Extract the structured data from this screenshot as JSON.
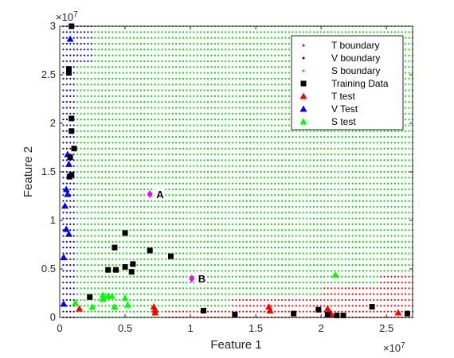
{
  "chart_data": {
    "type": "scatter",
    "xlabel": "Feature 1",
    "ylabel": "Feature 2",
    "x_exponent": "×10^7",
    "y_exponent": "×10^7",
    "x_exponent_base": "×10",
    "x_exponent_power": "7",
    "y_exponent_base": "×10",
    "y_exponent_power": "7",
    "xlim": [
      0,
      27000000
    ],
    "ylim": [
      0,
      30000000
    ],
    "x_ticks": [
      0,
      5000000,
      10000000,
      15000000,
      20000000,
      25000000
    ],
    "x_tick_labels": [
      "0",
      "0.5",
      "1",
      "1.5",
      "2",
      "2.5"
    ],
    "y_ticks": [
      0,
      5000000,
      10000000,
      15000000,
      20000000,
      25000000,
      30000000
    ],
    "y_tick_labels": [
      "0",
      "0.5",
      "1",
      "1.5",
      "2",
      "2.5",
      "3"
    ],
    "grid": false,
    "legend_position": "top-right",
    "colors": {
      "T": "#ff0000",
      "V": "#0000cc",
      "S": "#00dd00",
      "training": "#000000",
      "annotation": "#ff00ff"
    },
    "legend": [
      {
        "label": "T boundary",
        "marker": "dot",
        "color": "#ff0000"
      },
      {
        "label": "V boundary",
        "marker": "dot",
        "color": "#0000cc"
      },
      {
        "label": "S boundary",
        "marker": "dot",
        "color": "#00dd00"
      },
      {
        "label": "Training Data",
        "marker": "square",
        "color": "#000000"
      },
      {
        "label": "T test",
        "marker": "triangle",
        "color": "#ff0000"
      },
      {
        "label": "V Test",
        "marker": "triangle",
        "color": "#0000ff"
      },
      {
        "label": "S test",
        "marker": "triangle",
        "color": "#00ff00"
      }
    ],
    "boundary_grid": {
      "x_step": 270000,
      "y_step": 600000,
      "regions": [
        {
          "class": "V",
          "description": "x < 2700000 and y > 26000000",
          "x_max": 2700000,
          "y_min": 26000000
        },
        {
          "class": "V",
          "description": "x < 1350000",
          "x_max": 1350000
        },
        {
          "class": "T",
          "description": "x > 8000000 and y < 1000000",
          "x_min": 8000000,
          "y_max": 1000000
        },
        {
          "class": "T",
          "description": "x > 13000000 and y < 2000000",
          "x_min": 13000000,
          "y_max": 2000000
        },
        {
          "class": "T",
          "description": "x > 20000000 and y < 3100000",
          "x_min": 20000000,
          "y_max": 3100000
        },
        {
          "class": "T",
          "description": "x > 24500000 and y < 4300000",
          "x_min": 24500000,
          "y_max": 4300000
        },
        {
          "class": "S",
          "description": "elsewhere"
        }
      ]
    },
    "training_data": [
      [
        900000,
        30000000
      ],
      [
        700000,
        25600000
      ],
      [
        700000,
        25200000
      ],
      [
        900000,
        20500000
      ],
      [
        900000,
        19200000
      ],
      [
        1100000,
        17400000
      ],
      [
        800000,
        16500000
      ],
      [
        900000,
        14700000
      ],
      [
        750000,
        14500000
      ],
      [
        5000000,
        8700000
      ],
      [
        4200000,
        7200000
      ],
      [
        6900000,
        6900000
      ],
      [
        8500000,
        6300000
      ],
      [
        5600000,
        5500000
      ],
      [
        5000000,
        5200000
      ],
      [
        3700000,
        4900000
      ],
      [
        4300000,
        4900000
      ],
      [
        5500000,
        4700000
      ],
      [
        2300000,
        2100000
      ],
      [
        11000000,
        700000
      ],
      [
        13400000,
        300000
      ],
      [
        17900000,
        400000
      ],
      [
        19800000,
        800000
      ],
      [
        20500000,
        300000
      ],
      [
        21200000,
        200000
      ],
      [
        21700000,
        200000
      ],
      [
        23900000,
        1100000
      ],
      [
        26600000,
        400000
      ]
    ],
    "t_test": [
      [
        1500000,
        900000
      ],
      [
        7200000,
        1100000
      ],
      [
        7300000,
        800000
      ],
      [
        7300000,
        500000
      ],
      [
        16000000,
        1100000
      ],
      [
        16100000,
        700000
      ],
      [
        20500000,
        900000
      ],
      [
        20700000,
        500000
      ],
      [
        20800000,
        300000
      ],
      [
        25900000,
        500000
      ]
    ],
    "v_test": [
      [
        800000,
        28700000
      ],
      [
        600000,
        16800000
      ],
      [
        700000,
        15800000
      ],
      [
        500000,
        13200000
      ],
      [
        600000,
        12700000
      ],
      [
        400000,
        11500000
      ],
      [
        500000,
        9100000
      ],
      [
        700000,
        8600000
      ],
      [
        300000,
        6200000
      ],
      [
        300000,
        1400000
      ]
    ],
    "s_test": [
      [
        1200000,
        1500000
      ],
      [
        2500000,
        1100000
      ],
      [
        3300000,
        2300000
      ],
      [
        3300000,
        1900000
      ],
      [
        3700000,
        2200000
      ],
      [
        4000000,
        2200000
      ],
      [
        4200000,
        1100000
      ],
      [
        5000000,
        2000000
      ],
      [
        5200000,
        1300000
      ],
      [
        21100000,
        4400000
      ]
    ],
    "annotations": [
      {
        "label": "A",
        "x": 6900000,
        "y": 12700000
      },
      {
        "label": "B",
        "x": 10100000,
        "y": 4000000
      }
    ]
  }
}
